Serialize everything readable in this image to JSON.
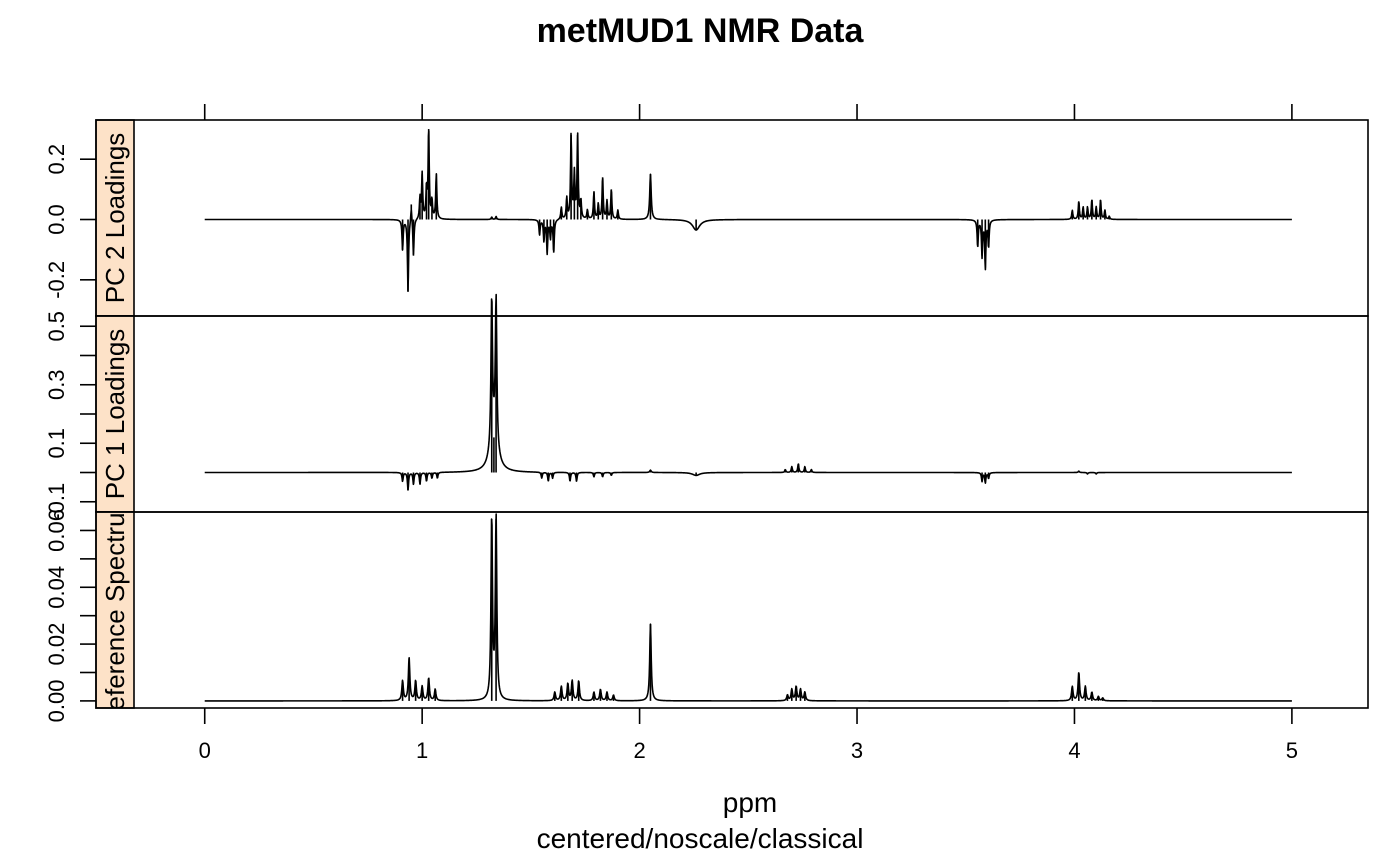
{
  "chart_data": {
    "type": "line",
    "title": "metMUD1 NMR Data",
    "xlabel": "ppm",
    "xlabel2": "centered/noscale/classical",
    "xlim": [
      -0.5,
      5.35
    ],
    "x_ticks": [
      0,
      1,
      2,
      3,
      4,
      5
    ],
    "x_tick_labels": [
      "0",
      "1",
      "2",
      "3",
      "4",
      "5"
    ],
    "grid": false,
    "strip_color": "#fde2c8",
    "line_color": "#000000",
    "panels": [
      {
        "name": "PC 2 Loadings",
        "ylim": [
          -0.32,
          0.33
        ],
        "y_ticks": [
          -0.2,
          0.0,
          0.2
        ],
        "y_tick_labels": [
          "-0.2",
          "0.0",
          "0.2"
        ],
        "peaks": [
          {
            "ppm": 0.91,
            "value": -0.1,
            "width": 0.003
          },
          {
            "ppm": 0.935,
            "value": -0.24,
            "width": 0.003
          },
          {
            "ppm": 0.95,
            "value": 0.05,
            "width": 0.003
          },
          {
            "ppm": 0.96,
            "value": -0.12,
            "width": 0.003
          },
          {
            "ppm": 0.99,
            "value": 0.07,
            "width": 0.003
          },
          {
            "ppm": 1.0,
            "value": 0.15,
            "width": 0.003
          },
          {
            "ppm": 1.02,
            "value": 0.1,
            "width": 0.003
          },
          {
            "ppm": 1.03,
            "value": 0.3,
            "width": 0.003
          },
          {
            "ppm": 1.045,
            "value": 0.06,
            "width": 0.003
          },
          {
            "ppm": 1.065,
            "value": 0.15,
            "width": 0.003
          },
          {
            "ppm": 1.32,
            "value": 0.008,
            "width": 0.003
          },
          {
            "ppm": 1.34,
            "value": 0.01,
            "width": 0.003
          },
          {
            "ppm": 1.54,
            "value": -0.05,
            "width": 0.003
          },
          {
            "ppm": 1.56,
            "value": -0.07,
            "width": 0.003
          },
          {
            "ppm": 1.575,
            "value": -0.11,
            "width": 0.003
          },
          {
            "ppm": 1.59,
            "value": -0.06,
            "width": 0.003
          },
          {
            "ppm": 1.605,
            "value": -0.11,
            "width": 0.003
          },
          {
            "ppm": 1.64,
            "value": 0.04,
            "width": 0.003
          },
          {
            "ppm": 1.665,
            "value": 0.07,
            "width": 0.003
          },
          {
            "ppm": 1.685,
            "value": 0.28,
            "width": 0.003
          },
          {
            "ppm": 1.7,
            "value": 0.15,
            "width": 0.003
          },
          {
            "ppm": 1.715,
            "value": 0.28,
            "width": 0.003
          },
          {
            "ppm": 1.73,
            "value": 0.06,
            "width": 0.003
          },
          {
            "ppm": 1.76,
            "value": 0.03,
            "width": 0.003
          },
          {
            "ppm": 1.79,
            "value": 0.09,
            "width": 0.003
          },
          {
            "ppm": 1.81,
            "value": 0.05,
            "width": 0.003
          },
          {
            "ppm": 1.83,
            "value": 0.14,
            "width": 0.003
          },
          {
            "ppm": 1.85,
            "value": 0.06,
            "width": 0.003
          },
          {
            "ppm": 1.87,
            "value": 0.1,
            "width": 0.003
          },
          {
            "ppm": 1.9,
            "value": 0.03,
            "width": 0.003
          },
          {
            "ppm": 2.05,
            "value": 0.15,
            "width": 0.004
          },
          {
            "ppm": 2.26,
            "value": -0.035,
            "width": 0.02
          },
          {
            "ppm": 3.555,
            "value": -0.09,
            "width": 0.003
          },
          {
            "ppm": 3.575,
            "value": -0.12,
            "width": 0.003
          },
          {
            "ppm": 3.59,
            "value": -0.16,
            "width": 0.003
          },
          {
            "ppm": 3.605,
            "value": -0.09,
            "width": 0.003
          },
          {
            "ppm": 3.99,
            "value": 0.03,
            "width": 0.003
          },
          {
            "ppm": 4.02,
            "value": 0.06,
            "width": 0.003
          },
          {
            "ppm": 4.04,
            "value": 0.04,
            "width": 0.003
          },
          {
            "ppm": 4.06,
            "value": 0.04,
            "width": 0.003
          },
          {
            "ppm": 4.08,
            "value": 0.065,
            "width": 0.003
          },
          {
            "ppm": 4.1,
            "value": 0.04,
            "width": 0.003
          },
          {
            "ppm": 4.12,
            "value": 0.065,
            "width": 0.003
          },
          {
            "ppm": 4.14,
            "value": 0.03,
            "width": 0.003
          },
          {
            "ppm": 4.16,
            "value": 0.01,
            "width": 0.003
          }
        ]
      },
      {
        "name": "PC 1 Loadings",
        "ylim": [
          -0.135,
          0.535
        ],
        "y_ticks": [
          -0.1,
          0.1,
          0.3,
          0.5
        ],
        "y_tick_labels": [
          "-0.1",
          "0.1",
          "0.3",
          "0.5"
        ],
        "minor_y_ticks": [
          0.0,
          0.2,
          0.4
        ],
        "peaks": [
          {
            "ppm": 0.91,
            "value": -0.03,
            "width": 0.003
          },
          {
            "ppm": 0.935,
            "value": -0.06,
            "width": 0.003
          },
          {
            "ppm": 0.96,
            "value": -0.04,
            "width": 0.003
          },
          {
            "ppm": 0.99,
            "value": -0.04,
            "width": 0.003
          },
          {
            "ppm": 1.02,
            "value": -0.03,
            "width": 0.003
          },
          {
            "ppm": 1.045,
            "value": -0.02,
            "width": 0.003
          },
          {
            "ppm": 1.07,
            "value": -0.02,
            "width": 0.003
          },
          {
            "ppm": 1.32,
            "value": 0.5,
            "width": 0.004
          },
          {
            "ppm": 1.34,
            "value": 0.5,
            "width": 0.004
          },
          {
            "ppm": 1.33,
            "value": 0.12,
            "width": 0.02
          },
          {
            "ppm": 1.55,
            "value": -0.02,
            "width": 0.003
          },
          {
            "ppm": 1.58,
            "value": -0.03,
            "width": 0.003
          },
          {
            "ppm": 1.6,
            "value": -0.02,
            "width": 0.003
          },
          {
            "ppm": 1.68,
            "value": -0.03,
            "width": 0.003
          },
          {
            "ppm": 1.71,
            "value": -0.03,
            "width": 0.003
          },
          {
            "ppm": 1.79,
            "value": -0.015,
            "width": 0.003
          },
          {
            "ppm": 1.83,
            "value": -0.015,
            "width": 0.003
          },
          {
            "ppm": 1.87,
            "value": -0.01,
            "width": 0.003
          },
          {
            "ppm": 2.05,
            "value": 0.008,
            "width": 0.004
          },
          {
            "ppm": 2.26,
            "value": -0.01,
            "width": 0.02
          },
          {
            "ppm": 2.67,
            "value": 0.01,
            "width": 0.003
          },
          {
            "ppm": 2.7,
            "value": 0.02,
            "width": 0.003
          },
          {
            "ppm": 2.73,
            "value": 0.03,
            "width": 0.003
          },
          {
            "ppm": 2.76,
            "value": 0.02,
            "width": 0.003
          },
          {
            "ppm": 2.79,
            "value": 0.01,
            "width": 0.003
          },
          {
            "ppm": 3.575,
            "value": -0.03,
            "width": 0.003
          },
          {
            "ppm": 3.59,
            "value": -0.035,
            "width": 0.003
          },
          {
            "ppm": 3.605,
            "value": -0.02,
            "width": 0.003
          },
          {
            "ppm": 4.02,
            "value": 0.005,
            "width": 0.003
          },
          {
            "ppm": 4.06,
            "value": -0.005,
            "width": 0.003
          },
          {
            "ppm": 4.1,
            "value": -0.005,
            "width": 0.003
          }
        ]
      },
      {
        "name": "Reference Spectrum",
        "ylim": [
          -0.0025,
          0.0665
        ],
        "y_ticks": [
          0.0,
          0.02,
          0.04,
          0.06
        ],
        "y_tick_labels": [
          "0.00",
          "0.02",
          "0.04",
          "0.06"
        ],
        "minor_y_ticks": [
          0.01,
          0.03,
          0.05
        ],
        "peaks": [
          {
            "ppm": 0.91,
            "value": 0.007,
            "width": 0.004
          },
          {
            "ppm": 0.94,
            "value": 0.015,
            "width": 0.004
          },
          {
            "ppm": 0.97,
            "value": 0.007,
            "width": 0.004
          },
          {
            "ppm": 1.0,
            "value": 0.005,
            "width": 0.004
          },
          {
            "ppm": 1.03,
            "value": 0.008,
            "width": 0.004
          },
          {
            "ppm": 1.06,
            "value": 0.004,
            "width": 0.004
          },
          {
            "ppm": 1.32,
            "value": 0.064,
            "width": 0.004
          },
          {
            "ppm": 1.34,
            "value": 0.064,
            "width": 0.004
          },
          {
            "ppm": 1.61,
            "value": 0.003,
            "width": 0.004
          },
          {
            "ppm": 1.64,
            "value": 0.005,
            "width": 0.004
          },
          {
            "ppm": 1.67,
            "value": 0.006,
            "width": 0.004
          },
          {
            "ppm": 1.69,
            "value": 0.007,
            "width": 0.004
          },
          {
            "ppm": 1.72,
            "value": 0.007,
            "width": 0.004
          },
          {
            "ppm": 1.79,
            "value": 0.003,
            "width": 0.004
          },
          {
            "ppm": 1.82,
            "value": 0.004,
            "width": 0.004
          },
          {
            "ppm": 1.85,
            "value": 0.003,
            "width": 0.004
          },
          {
            "ppm": 1.88,
            "value": 0.002,
            "width": 0.004
          },
          {
            "ppm": 2.05,
            "value": 0.027,
            "width": 0.004
          },
          {
            "ppm": 2.68,
            "value": 0.002,
            "width": 0.004
          },
          {
            "ppm": 2.7,
            "value": 0.004,
            "width": 0.004
          },
          {
            "ppm": 2.72,
            "value": 0.005,
            "width": 0.004
          },
          {
            "ppm": 2.74,
            "value": 0.004,
            "width": 0.004
          },
          {
            "ppm": 2.76,
            "value": 0.003,
            "width": 0.004
          },
          {
            "ppm": 3.99,
            "value": 0.005,
            "width": 0.004
          },
          {
            "ppm": 4.02,
            "value": 0.01,
            "width": 0.004
          },
          {
            "ppm": 4.05,
            "value": 0.005,
            "width": 0.004
          },
          {
            "ppm": 4.08,
            "value": 0.003,
            "width": 0.004
          },
          {
            "ppm": 4.11,
            "value": 0.0015,
            "width": 0.004
          },
          {
            "ppm": 4.13,
            "value": 0.001,
            "width": 0.004
          }
        ]
      }
    ]
  }
}
